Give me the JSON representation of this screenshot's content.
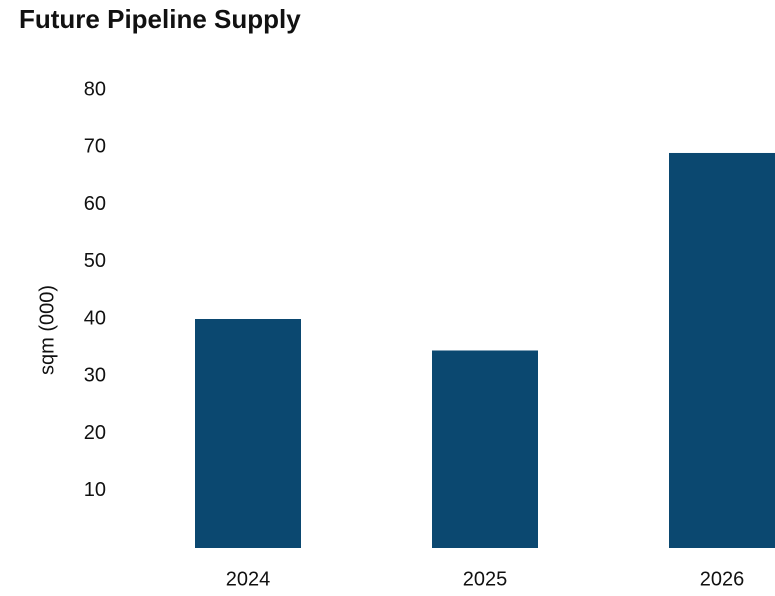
{
  "chart_data": {
    "type": "bar",
    "title": "Future Pipeline Supply",
    "xlabel": "",
    "ylabel": "sqm (000)",
    "categories": [
      "2024",
      "2025",
      "2026"
    ],
    "values": [
      40,
      34.5,
      69
    ],
    "ylim": [
      0,
      80
    ],
    "yticks": [
      "10",
      "20",
      "30",
      "40",
      "50",
      "60",
      "70",
      "80"
    ],
    "grid": false,
    "bar_color": "#0b4870"
  }
}
